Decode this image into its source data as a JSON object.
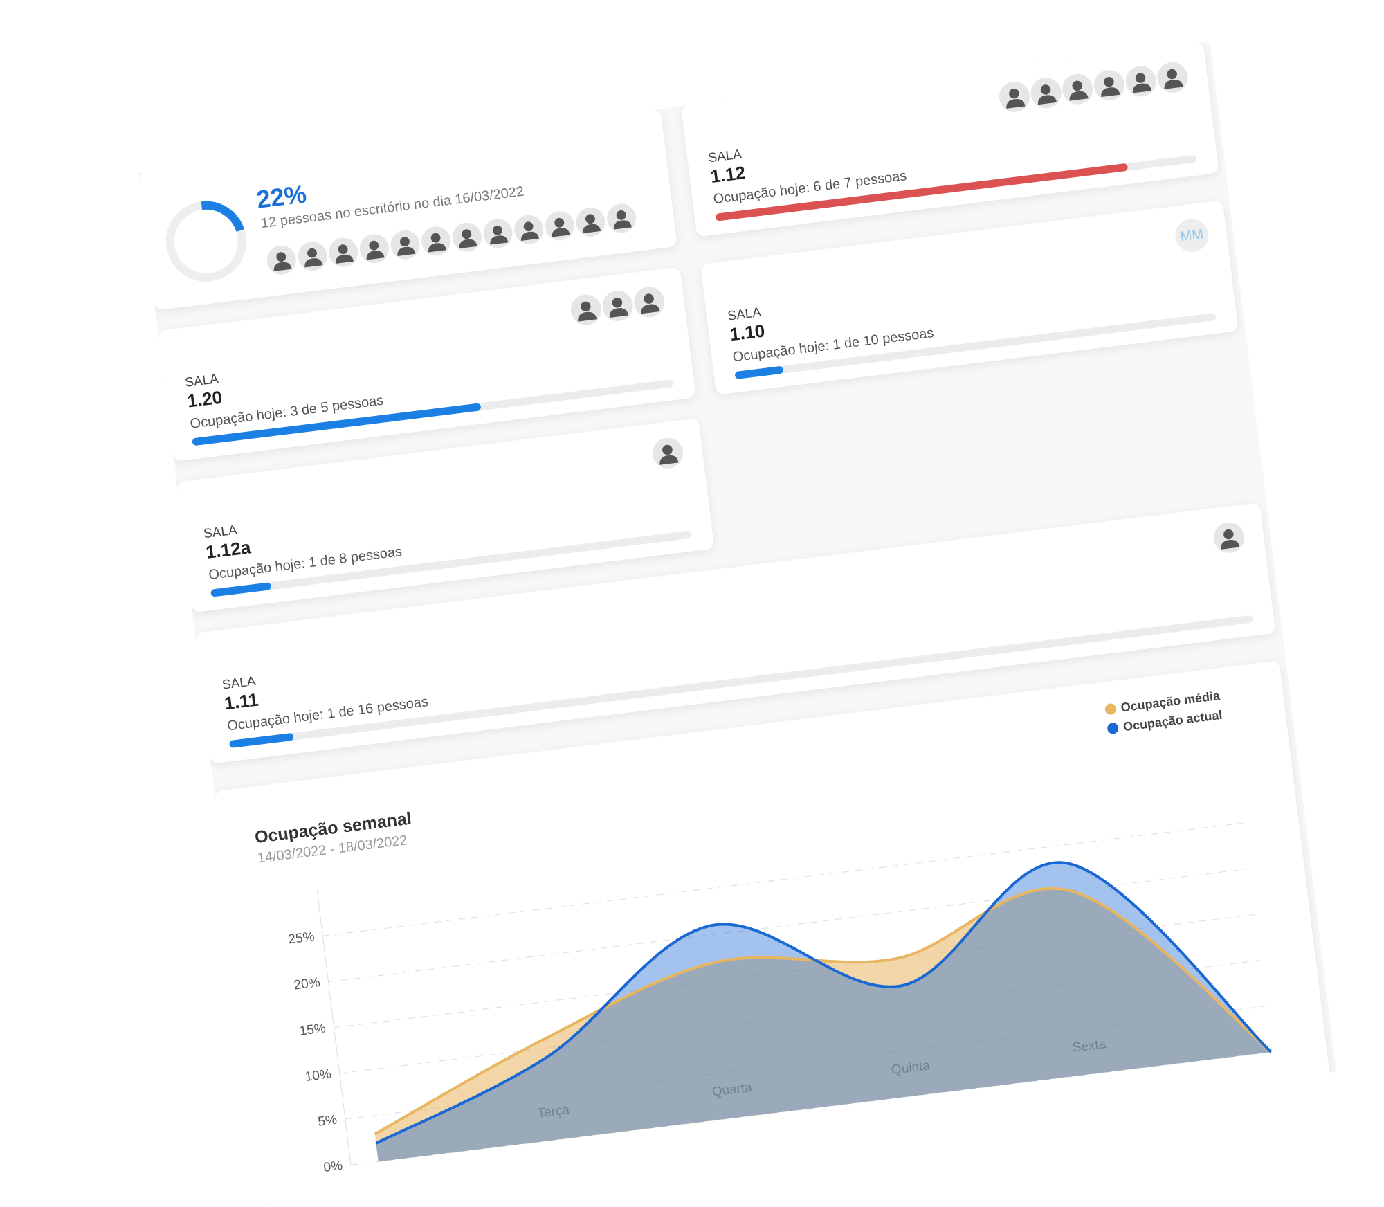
{
  "summary": {
    "percent": 22,
    "percent_label": "22%",
    "people": 12,
    "text": "12 pessoas no escritório no dia 16/03/2022"
  },
  "rooms": [
    {
      "label": "SALA",
      "name": "1.20",
      "occupancy_text": "Ocupação hoje: 3 de 5 pessoas",
      "occupied": 3,
      "capacity": 5,
      "color": "#1b7fe3"
    },
    {
      "label": "SALA",
      "name": "1.12",
      "occupancy_text": "Ocupação hoje: 6 de 7 pessoas",
      "occupied": 6,
      "capacity": 7,
      "color": "#dc5252"
    },
    {
      "label": "SALA",
      "name": "1.12a",
      "occupancy_text": "Ocupação hoje: 1 de 8 pessoas",
      "occupied": 1,
      "capacity": 8,
      "color": "#1b7fe3"
    },
    {
      "label": "SALA",
      "name": "1.10",
      "occupancy_text": "Ocupação hoje: 1 de 10 pessoas",
      "occupied": 1,
      "capacity": 10,
      "color": "#1b7fe3",
      "initials": "MM"
    },
    {
      "label": "SALA",
      "name": "1.11",
      "occupancy_text": "Ocupação hoje: 1 de 16 pessoas",
      "occupied": 1,
      "capacity": 16,
      "color": "#1b7fe3"
    }
  ],
  "chart_data": {
    "type": "area",
    "title": "Ocupação semanal",
    "subtitle": "14/03/2022 - 18/03/2022",
    "categories": [
      null,
      "Terça",
      "Quarta",
      "Quinta",
      "Sexta",
      null
    ],
    "series": [
      {
        "name": "Ocupação média",
        "color": "#e8b560",
        "values": [
          3,
          11,
          17,
          15,
          20,
          0
        ]
      },
      {
        "name": "Ocupação actual",
        "color": "#1a68d4",
        "values": [
          2,
          9,
          21,
          12,
          23,
          0
        ]
      }
    ],
    "ylim": [
      0,
      30
    ],
    "yticks": [
      {
        "value": 0,
        "label": "0%"
      },
      {
        "value": 5,
        "label": "5%"
      },
      {
        "value": 10,
        "label": "10%"
      },
      {
        "value": 15,
        "label": "15%"
      },
      {
        "value": 20,
        "label": "20%"
      },
      {
        "value": 25,
        "label": "25%"
      }
    ],
    "grid": true,
    "legend": "top-right"
  }
}
